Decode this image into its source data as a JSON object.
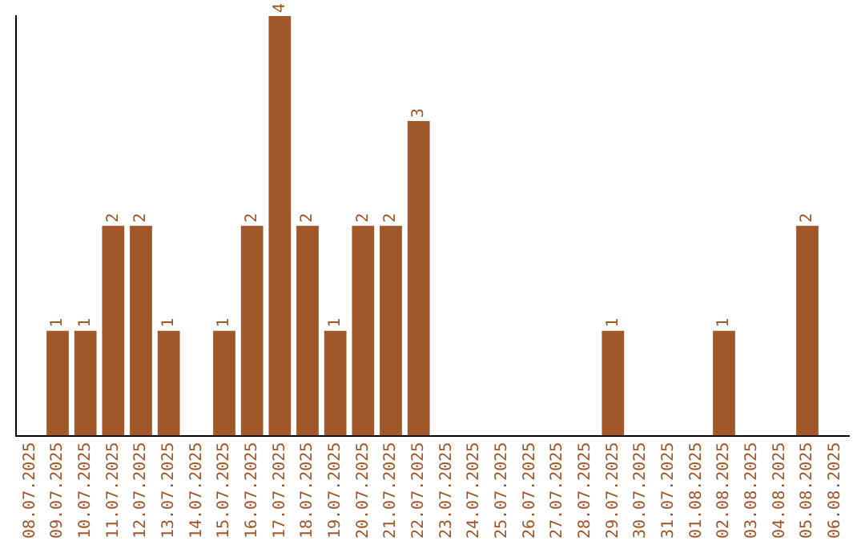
{
  "chart_data": {
    "type": "bar",
    "categories": [
      "08.07.2025",
      "09.07.2025",
      "10.07.2025",
      "11.07.2025",
      "12.07.2025",
      "13.07.2025",
      "14.07.2025",
      "15.07.2025",
      "16.07.2025",
      "17.07.2025",
      "18.07.2025",
      "19.07.2025",
      "20.07.2025",
      "21.07.2025",
      "22.07.2025",
      "23.07.2025",
      "24.07.2025",
      "25.07.2025",
      "26.07.2025",
      "27.07.2025",
      "28.07.2025",
      "29.07.2025",
      "30.07.2025",
      "31.07.2025",
      "01.08.2025",
      "02.08.2025",
      "03.08.2025",
      "04.08.2025",
      "05.08.2025",
      "06.08.2025"
    ],
    "values": [
      0,
      1,
      1,
      2,
      2,
      1,
      0,
      1,
      2,
      4,
      2,
      1,
      2,
      2,
      3,
      0,
      0,
      0,
      0,
      0,
      0,
      1,
      0,
      0,
      0,
      1,
      0,
      0,
      2,
      0
    ],
    "value_labels": [
      null,
      "1",
      "1",
      "2",
      "2",
      "1",
      null,
      "1",
      "2",
      "4",
      "2",
      "1",
      "2",
      "2",
      "3",
      null,
      null,
      null,
      null,
      null,
      null,
      "1",
      null,
      null,
      null,
      "1",
      null,
      null,
      "2",
      null
    ],
    "color": "#a0572a",
    "grid": false,
    "legend": false
  }
}
